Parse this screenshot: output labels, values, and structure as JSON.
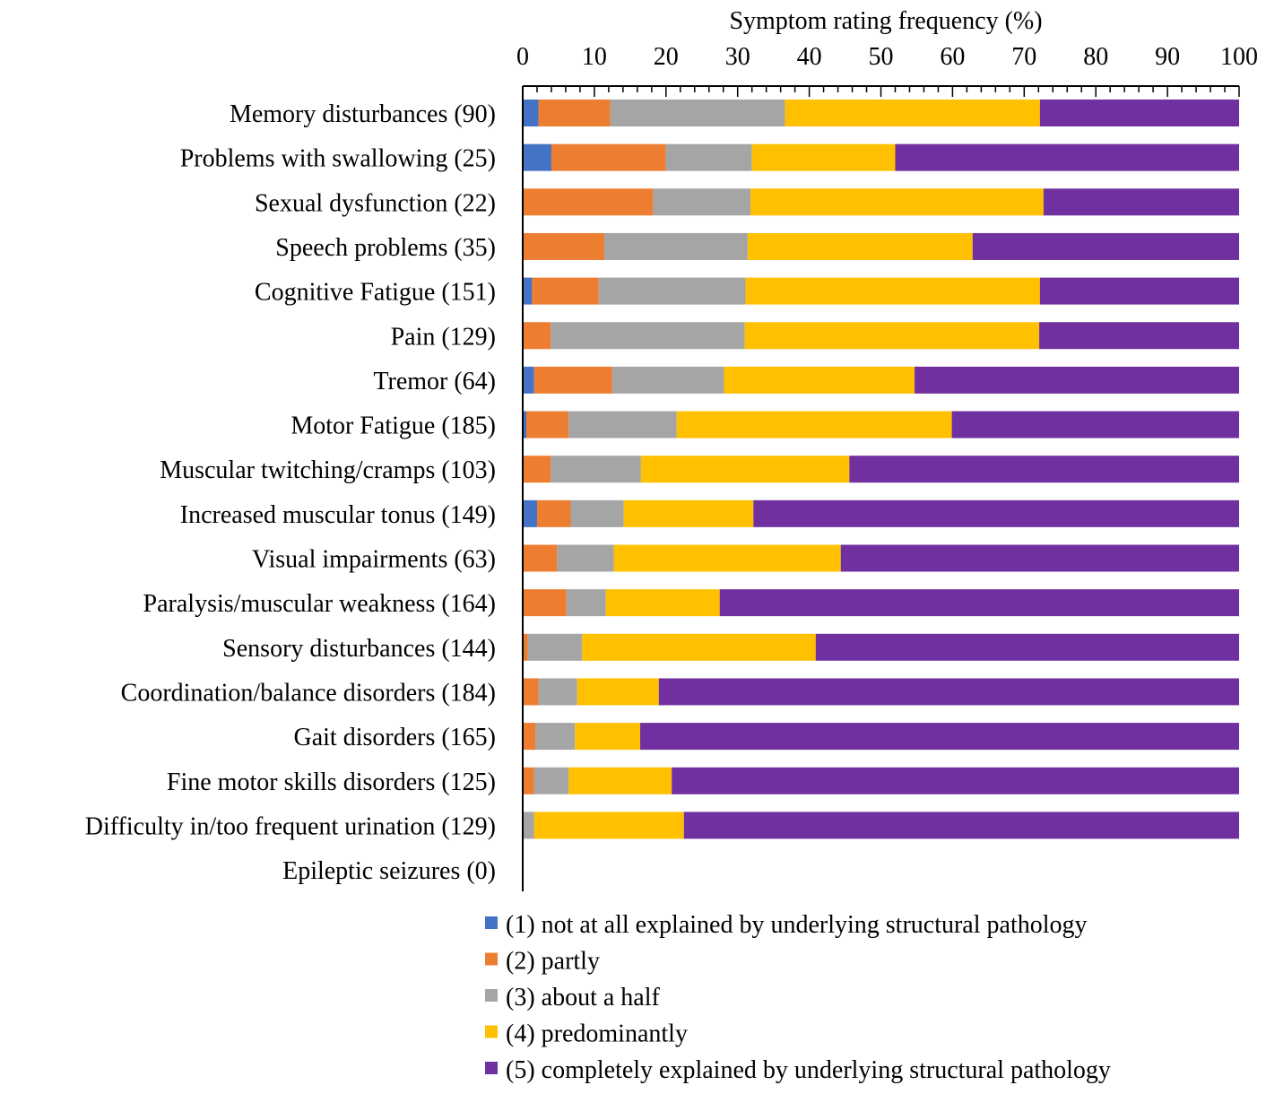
{
  "chart_data": {
    "type": "bar",
    "orientation": "horizontal",
    "stacked": true,
    "title": "Symptom rating frequency (%)",
    "xlabel": "Symptom rating frequency (%)",
    "ylabel": "",
    "xlim": [
      0,
      100
    ],
    "xticks": [
      "0",
      "10",
      "20",
      "30",
      "40",
      "50",
      "60",
      "70",
      "80",
      "90",
      "100"
    ],
    "grid": false,
    "legend_position": "bottom",
    "categories": [
      "Memory disturbances (90)",
      "Problems with swallowing (25)",
      "Sexual dysfunction (22)",
      "Speech problems (35)",
      "Cognitive Fatigue (151)",
      "Pain (129)",
      "Tremor (64)",
      "Motor Fatigue (185)",
      "Muscular twitching/cramps (103)",
      "Increased muscular tonus (149)",
      "Visual impairments (63)",
      "Paralysis/muscular weakness  (164)",
      "Sensory disturbances (144)",
      "Coordination/balance disorders (184)",
      "Gait disorders (165)",
      "Fine motor skills disorders (125)",
      "Difficulty in/too frequent urination (129)",
      "Epileptic seizures (0)"
    ],
    "series": [
      {
        "name": "(1) not at all explained by underlying structural pathology",
        "color": "#4472C4",
        "values": [
          2.2,
          4.0,
          0,
          0,
          1.3,
          0,
          1.6,
          0.5,
          0,
          2.0,
          0,
          0,
          0,
          0,
          0,
          0,
          0,
          0
        ]
      },
      {
        "name": "(2) partly",
        "color": "#ED7D31",
        "values": [
          10.0,
          16.0,
          18.2,
          11.4,
          9.3,
          3.9,
          10.9,
          5.9,
          3.9,
          4.7,
          4.8,
          6.1,
          0.7,
          2.2,
          1.8,
          1.6,
          0,
          0
        ]
      },
      {
        "name": "(3) about a half",
        "color": "#A5A5A5",
        "values": [
          24.4,
          12.0,
          13.6,
          20.0,
          20.5,
          27.1,
          15.6,
          15.1,
          12.6,
          7.4,
          7.9,
          5.5,
          7.6,
          5.4,
          5.5,
          4.8,
          1.6,
          0
        ]
      },
      {
        "name": "(4) predominantly",
        "color": "#FFC000",
        "values": [
          35.6,
          20.0,
          40.9,
          31.4,
          41.1,
          41.1,
          26.6,
          38.4,
          29.1,
          18.1,
          31.7,
          15.9,
          32.6,
          11.4,
          9.1,
          14.4,
          20.9,
          0
        ]
      },
      {
        "name": "(5) completely explained by underlying structural pathology",
        "color": "#7030A0",
        "values": [
          27.8,
          48.0,
          27.3,
          37.2,
          27.8,
          27.9,
          45.3,
          40.1,
          54.4,
          67.8,
          55.6,
          72.5,
          59.1,
          81.0,
          83.6,
          79.2,
          77.5,
          0
        ]
      }
    ]
  }
}
